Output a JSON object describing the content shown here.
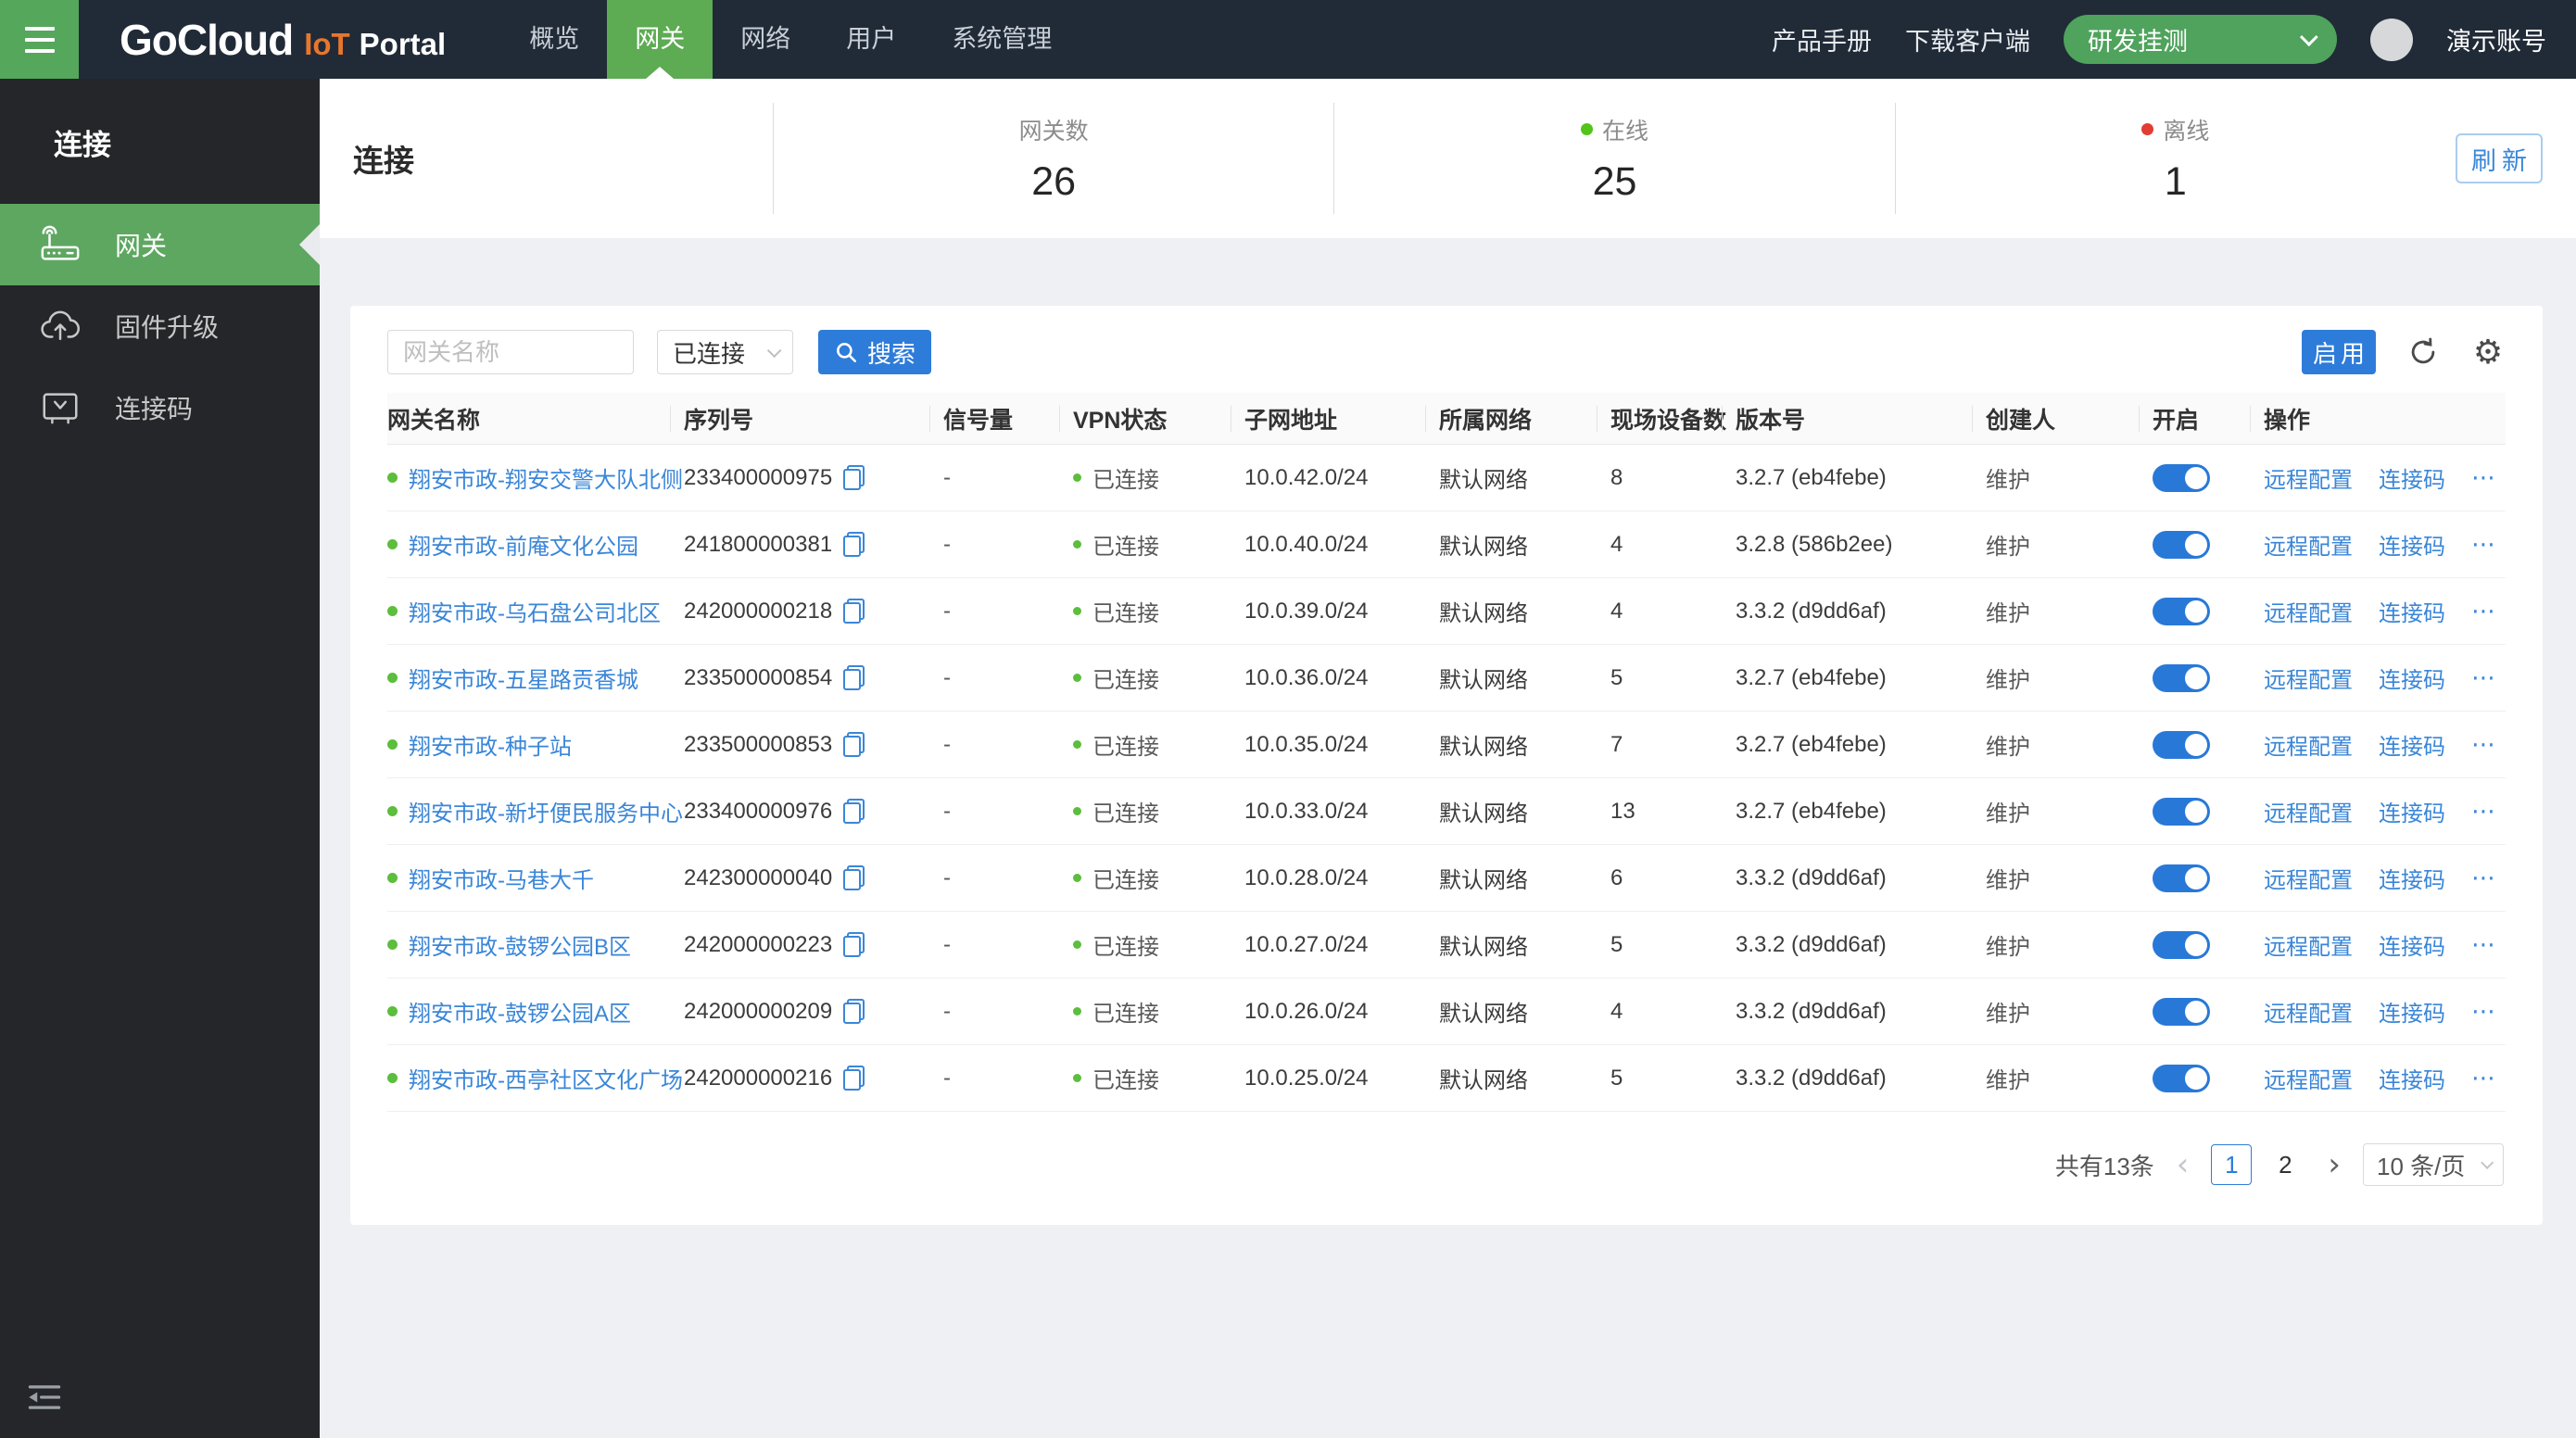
{
  "topbar": {
    "logo": {
      "part1": "GoCloud",
      "part2": "IoT",
      "part3": "Portal"
    },
    "nav": [
      {
        "label": "概览",
        "active": false
      },
      {
        "label": "网关",
        "active": true
      },
      {
        "label": "网络",
        "active": false
      },
      {
        "label": "用户",
        "active": false
      },
      {
        "label": "系统管理",
        "active": false
      }
    ],
    "links": [
      "产品手册",
      "下载客户端"
    ],
    "env_select_value": "研发挂测",
    "account_name": "演示账号"
  },
  "sidebar": {
    "group_title": "连接",
    "items": [
      {
        "label": "网关",
        "icon": "router-icon",
        "active": true
      },
      {
        "label": "固件升级",
        "icon": "cloud-upload-icon",
        "active": false
      },
      {
        "label": "连接码",
        "icon": "monitor-code-icon",
        "active": false
      }
    ]
  },
  "header": {
    "title": "连接",
    "stats": [
      {
        "label": "网关数",
        "value": "26",
        "dot": null
      },
      {
        "label": "在线",
        "value": "25",
        "dot": "#52c41a"
      },
      {
        "label": "离线",
        "value": "1",
        "dot": "#e23c33"
      }
    ],
    "refresh_label": "刷新"
  },
  "toolbar": {
    "search_placeholder": "网关名称",
    "filter_value": "已连接",
    "search_label": "搜索",
    "enable_label": "启用",
    "icons": [
      "refresh-icon",
      "gear-icon"
    ]
  },
  "table": {
    "columns": [
      "网关名称",
      "序列号",
      "信号量",
      "VPN状态",
      "子网地址",
      "所属网络",
      "现场设备数",
      "版本号",
      "创建人",
      "开启",
      "操作"
    ],
    "action_labels": [
      "远程配置",
      "连接码",
      "⋯"
    ],
    "rows": [
      {
        "name": "翔安市政-翔安交警大队北侧",
        "serial": "233400000975",
        "signal": "-",
        "vpn": "已连接",
        "subnet": "10.0.42.0/24",
        "network": "默认网络",
        "devices": "8",
        "version": "3.2.7 (eb4febe)",
        "creator": "维护",
        "enabled": true
      },
      {
        "name": "翔安市政-前庵文化公园",
        "serial": "241800000381",
        "signal": "-",
        "vpn": "已连接",
        "subnet": "10.0.40.0/24",
        "network": "默认网络",
        "devices": "4",
        "version": "3.2.8 (586b2ee)",
        "creator": "维护",
        "enabled": true
      },
      {
        "name": "翔安市政-乌石盘公司北区",
        "serial": "242000000218",
        "signal": "-",
        "vpn": "已连接",
        "subnet": "10.0.39.0/24",
        "network": "默认网络",
        "devices": "4",
        "version": "3.3.2 (d9dd6af)",
        "creator": "维护",
        "enabled": true
      },
      {
        "name": "翔安市政-五星路贡香城",
        "serial": "233500000854",
        "signal": "-",
        "vpn": "已连接",
        "subnet": "10.0.36.0/24",
        "network": "默认网络",
        "devices": "5",
        "version": "3.2.7 (eb4febe)",
        "creator": "维护",
        "enabled": true
      },
      {
        "name": "翔安市政-种子站",
        "serial": "233500000853",
        "signal": "-",
        "vpn": "已连接",
        "subnet": "10.0.35.0/24",
        "network": "默认网络",
        "devices": "7",
        "version": "3.2.7 (eb4febe)",
        "creator": "维护",
        "enabled": true
      },
      {
        "name": "翔安市政-新圩便民服务中心",
        "serial": "233400000976",
        "signal": "-",
        "vpn": "已连接",
        "subnet": "10.0.33.0/24",
        "network": "默认网络",
        "devices": "13",
        "version": "3.2.7 (eb4febe)",
        "creator": "维护",
        "enabled": true
      },
      {
        "name": "翔安市政-马巷大千",
        "serial": "242300000040",
        "signal": "-",
        "vpn": "已连接",
        "subnet": "10.0.28.0/24",
        "network": "默认网络",
        "devices": "6",
        "version": "3.3.2 (d9dd6af)",
        "creator": "维护",
        "enabled": true
      },
      {
        "name": "翔安市政-鼓锣公园B区",
        "serial": "242000000223",
        "signal": "-",
        "vpn": "已连接",
        "subnet": "10.0.27.0/24",
        "network": "默认网络",
        "devices": "5",
        "version": "3.3.2 (d9dd6af)",
        "creator": "维护",
        "enabled": true
      },
      {
        "name": "翔安市政-鼓锣公园A区",
        "serial": "242000000209",
        "signal": "-",
        "vpn": "已连接",
        "subnet": "10.0.26.0/24",
        "network": "默认网络",
        "devices": "4",
        "version": "3.3.2 (d9dd6af)",
        "creator": "维护",
        "enabled": true
      },
      {
        "name": "翔安市政-西亭社区文化广场",
        "serial": "242000000216",
        "signal": "-",
        "vpn": "已连接",
        "subnet": "10.0.25.0/24",
        "network": "默认网络",
        "devices": "5",
        "version": "3.3.2 (d9dd6af)",
        "creator": "维护",
        "enabled": true
      }
    ]
  },
  "pagination": {
    "total_label": "共有13条",
    "pages": [
      "1",
      "2"
    ],
    "current_page": "1",
    "page_size_label": "10 条/页"
  },
  "colors": {
    "topbar_bg": "#212b38",
    "brand_green": "#55a75c",
    "nav_active_green": "#5dab53",
    "sidebar_bg": "#242629",
    "primary_blue": "#2e7cd9",
    "link_blue": "#3a86d8",
    "online_green": "#52c41a",
    "offline_red": "#e23c33",
    "logo_orange": "#e8762d"
  }
}
